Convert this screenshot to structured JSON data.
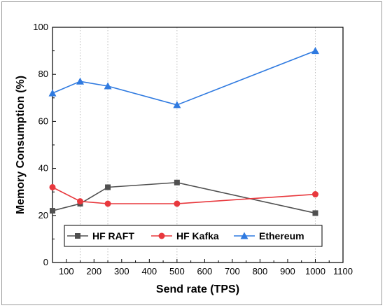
{
  "chart_data": {
    "type": "line",
    "title": "",
    "xlabel": "Send rate (TPS)",
    "ylabel": "Memory Consumption (%)",
    "xlim": [
      50,
      1100
    ],
    "ylim": [
      0,
      100
    ],
    "x_ticks": [
      100,
      200,
      300,
      400,
      500,
      600,
      700,
      800,
      900,
      1000,
      1100
    ],
    "y_ticks": [
      0,
      20,
      40,
      60,
      80,
      100
    ],
    "grid": false,
    "vertical_guides_at": [
      150,
      250,
      500,
      1000
    ],
    "legend_position": "lower-left",
    "x": [
      50,
      150,
      250,
      500,
      1000
    ],
    "series": [
      {
        "name": "HF RAFT",
        "values": [
          22,
          25,
          32,
          34,
          21
        ],
        "color": "#505050",
        "marker": "square"
      },
      {
        "name": "HF Kafka",
        "values": [
          32,
          26,
          25,
          25,
          29
        ],
        "color": "#e8383d",
        "marker": "circle"
      },
      {
        "name": "Ethereum",
        "values": [
          72,
          77,
          75,
          67,
          90
        ],
        "color": "#2f7ae0",
        "marker": "triangle"
      }
    ]
  }
}
